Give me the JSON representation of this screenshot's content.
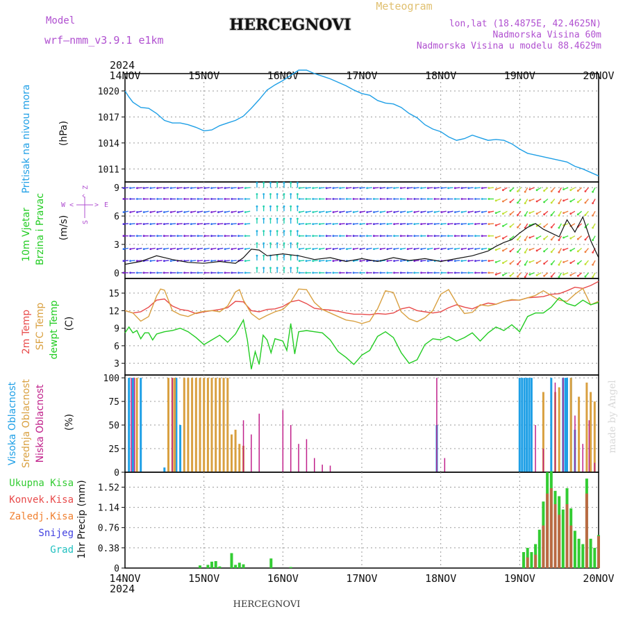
{
  "header": {
    "model_label": "Model",
    "model_name": "wrf—nmm_v3.9.1  e1km",
    "station": "HERCEGNOVI",
    "product": "Meteogram",
    "location": "lon,lat (18.4875E, 42.4625N)",
    "altitude": "Nadmorska Visina 60m",
    "model_altitude": "Nadmorska Visina u modelu 88.4629m",
    "bottom_station": "HERCEGNOVI",
    "credit": "made by Angel"
  },
  "time_axis": {
    "year": "2024",
    "labels": [
      "14NOV",
      "15NOV",
      "16NOV",
      "17NOV",
      "18NOV",
      "19NOV",
      "20NOV"
    ]
  },
  "colors": {
    "pressure": "#1e9fe6",
    "t2m": "#e84a4a",
    "sfc": "#d9a040",
    "dewpt": "#22cc22",
    "high_cloud": "#1e9fe6",
    "mid_cloud": "#d9a040",
    "low_cloud": "#c0208a",
    "total_precip": "#33cc33",
    "conv_precip": "#e84a4a",
    "frozen_precip": "#f08030",
    "snow": "#4040e0",
    "hail": "#20c0c0"
  },
  "chart_data": [
    {
      "type": "line",
      "panel": "pressure",
      "ylabel_parts": [
        "Pritisak na nivou mora",
        "(hPa)"
      ],
      "yticks": [
        "1011",
        "1014",
        "1017",
        "1020"
      ],
      "ylim": [
        1009.5,
        1022
      ],
      "xlim": [
        0,
        6
      ],
      "x": [
        0,
        0.05,
        0.1,
        0.2,
        0.3,
        0.4,
        0.5,
        0.6,
        0.7,
        0.8,
        0.9,
        1.0,
        1.1,
        1.2,
        1.3,
        1.4,
        1.5,
        1.6,
        1.7,
        1.8,
        1.9,
        2.0,
        2.1,
        2.2,
        2.3,
        2.4,
        2.5,
        2.6,
        2.7,
        2.8,
        2.9,
        3.0,
        3.1,
        3.2,
        3.3,
        3.4,
        3.5,
        3.6,
        3.7,
        3.8,
        3.9,
        4.0,
        4.1,
        4.2,
        4.3,
        4.4,
        4.5,
        4.6,
        4.7,
        4.8,
        4.9,
        5.0,
        5.1,
        5.2,
        5.3,
        5.4,
        5.5,
        5.6,
        5.7,
        5.8,
        5.9,
        6.0
      ],
      "values": [
        1020,
        1019.3,
        1018.7,
        1018.1,
        1018,
        1017.4,
        1016.6,
        1016.3,
        1016.3,
        1016.1,
        1015.8,
        1015.4,
        1015.5,
        1016,
        1016.3,
        1016.6,
        1017.1,
        1018,
        1019,
        1020.1,
        1020.7,
        1021.2,
        1021.8,
        1022.4,
        1022.4,
        1022,
        1021.7,
        1021.4,
        1021,
        1020.6,
        1020.1,
        1019.7,
        1019.5,
        1018.9,
        1018.6,
        1018.5,
        1018.1,
        1017.4,
        1016.9,
        1016.1,
        1015.6,
        1015.3,
        1014.7,
        1014.3,
        1014.5,
        1014.9,
        1014.6,
        1014.3,
        1014.4,
        1014.3,
        1013.9,
        1013.3,
        1012.8,
        1012.6,
        1012.4,
        1012.2,
        1012,
        1011.8,
        1011.3,
        1011,
        1010.6,
        1010.2
      ]
    },
    {
      "type": "line",
      "panel": "wind",
      "ylabel_parts": [
        "10m Vjetar",
        "Brzina i Pravac",
        "(m/s)"
      ],
      "compass": {
        "n": "Z",
        "w": "W",
        "e": "E",
        "s": "S",
        "arrow_up": "^",
        "arrow_left": "<",
        "arrow_right": ">"
      },
      "yticks": [
        "0",
        "3",
        "6",
        "9"
      ],
      "ylim": [
        -0.6,
        9.6
      ],
      "xlim": [
        0,
        6
      ],
      "x": [
        0,
        0.2,
        0.4,
        0.6,
        0.8,
        1.0,
        1.2,
        1.4,
        1.5,
        1.6,
        1.7,
        1.8,
        2.0,
        2.2,
        2.4,
        2.6,
        2.8,
        3.0,
        3.2,
        3.4,
        3.6,
        3.8,
        4.0,
        4.2,
        4.4,
        4.6,
        4.7,
        4.8,
        4.9,
        5.0,
        5.1,
        5.2,
        5.3,
        5.4,
        5.5,
        5.6,
        5.7,
        5.8,
        5.9,
        6.0
      ],
      "values": [
        0.9,
        1.2,
        1.8,
        1.4,
        1.1,
        1.0,
        1.2,
        1.0,
        1.6,
        2.5,
        2.4,
        1.8,
        2.0,
        1.8,
        1.4,
        1.6,
        1.2,
        1.5,
        1.2,
        1.6,
        1.3,
        1.5,
        1.2,
        1.5,
        1.8,
        2.3,
        2.8,
        3.2,
        3.5,
        4.2,
        4.8,
        5.2,
        4.6,
        4.2,
        3.8,
        5.6,
        4.3,
        5.9,
        3.4,
        1.6
      ]
    },
    {
      "type": "line",
      "panel": "temperature",
      "ylabel_parts": [
        "2m Temp",
        "SFC Temp",
        "dewpt Temp",
        "(C)"
      ],
      "yticks": [
        "3",
        "6",
        "9",
        "12",
        "15"
      ],
      "ylim": [
        1,
        17.5
      ],
      "xlim": [
        0,
        6
      ],
      "series": [
        {
          "name": "2m Temp",
          "x": [
            0,
            0.1,
            0.2,
            0.3,
            0.4,
            0.5,
            0.6,
            0.7,
            0.8,
            0.9,
            1.0,
            1.1,
            1.2,
            1.3,
            1.4,
            1.5,
            1.6,
            1.7,
            1.8,
            1.9,
            2.0,
            2.1,
            2.2,
            2.3,
            2.4,
            2.5,
            2.6,
            2.7,
            2.8,
            2.9,
            3.0,
            3.1,
            3.2,
            3.3,
            3.4,
            3.5,
            3.6,
            3.7,
            3.8,
            3.9,
            4.0,
            4.1,
            4.2,
            4.3,
            4.4,
            4.5,
            4.6,
            4.7,
            4.8,
            4.9,
            5.0,
            5.1,
            5.2,
            5.3,
            5.4,
            5.5,
            5.6,
            5.7,
            5.8,
            5.9,
            6.0
          ],
          "values": [
            12,
            11.6,
            11.8,
            12.6,
            13.8,
            14,
            12.8,
            12.2,
            12,
            11.5,
            11.8,
            12,
            12.2,
            12.5,
            13.6,
            13.5,
            12,
            11.8,
            12.2,
            12.3,
            12.7,
            13.5,
            13.8,
            13.2,
            12.4,
            12.2,
            12.1,
            11.9,
            11.6,
            11.4,
            11.4,
            11.3,
            11.5,
            11.4,
            11.6,
            12.3,
            12.6,
            12,
            11.8,
            11.6,
            11.8,
            12.5,
            13,
            12.6,
            12.3,
            12.9,
            13.3,
            13.1,
            13.6,
            13.8,
            13.8,
            14.2,
            14.3,
            14.4,
            14.8,
            14.9,
            15.4,
            16,
            15.8,
            16.3,
            17
          ]
        },
        {
          "name": "SFC Temp",
          "x": [
            0,
            0.1,
            0.2,
            0.3,
            0.4,
            0.45,
            0.5,
            0.55,
            0.6,
            0.7,
            0.8,
            0.9,
            1.0,
            1.1,
            1.2,
            1.3,
            1.4,
            1.45,
            1.5,
            1.6,
            1.7,
            1.8,
            1.9,
            2.0,
            2.1,
            2.2,
            2.3,
            2.4,
            2.5,
            2.6,
            2.7,
            2.8,
            2.9,
            3.0,
            3.1,
            3.2,
            3.3,
            3.4,
            3.5,
            3.6,
            3.7,
            3.8,
            3.9,
            4.0,
            4.1,
            4.2,
            4.3,
            4.4,
            4.5,
            4.6,
            4.7,
            4.8,
            4.9,
            5.0,
            5.1,
            5.2,
            5.3,
            5.4,
            5.5,
            5.6,
            5.7,
            5.8,
            5.9,
            6.0
          ],
          "values": [
            12,
            11.6,
            10.2,
            11,
            14.5,
            15.7,
            15.5,
            13.8,
            12,
            11.3,
            11,
            11.6,
            11.9,
            12,
            11.8,
            12.8,
            15.2,
            15.6,
            13.8,
            11.5,
            10.5,
            11.2,
            11.8,
            12.2,
            13.5,
            15.7,
            15.6,
            13.4,
            12.2,
            11.6,
            11,
            10.4,
            10.2,
            9.8,
            10.2,
            12.3,
            15.4,
            15.1,
            11.8,
            10.6,
            10.1,
            10.8,
            12,
            14.8,
            15.6,
            13.3,
            11.5,
            11.7,
            13,
            12.8,
            13.1,
            13.6,
            13.9,
            13.8,
            14.2,
            14.6,
            15.4,
            14.6,
            13.8,
            13.6,
            14.8,
            15.8,
            13,
            13.6
          ]
        },
        {
          "name": "dewpt Temp",
          "x": [
            0,
            0.05,
            0.1,
            0.15,
            0.2,
            0.25,
            0.3,
            0.35,
            0.4,
            0.5,
            0.6,
            0.7,
            0.8,
            0.9,
            1.0,
            1.1,
            1.2,
            1.3,
            1.4,
            1.5,
            1.55,
            1.6,
            1.65,
            1.7,
            1.75,
            1.8,
            1.85,
            1.9,
            2.0,
            2.05,
            2.1,
            2.15,
            2.2,
            2.3,
            2.4,
            2.5,
            2.6,
            2.7,
            2.8,
            2.9,
            3.0,
            3.1,
            3.2,
            3.3,
            3.4,
            3.5,
            3.6,
            3.7,
            3.8,
            3.9,
            4.0,
            4.1,
            4.2,
            4.3,
            4.4,
            4.5,
            4.6,
            4.7,
            4.8,
            4.9,
            5.0,
            5.1,
            5.2,
            5.3,
            5.4,
            5.5,
            5.6,
            5.7,
            5.8,
            5.9,
            6.0
          ],
          "values": [
            8.2,
            9.2,
            8.2,
            8.6,
            7.2,
            8.2,
            8.2,
            7,
            8,
            8.4,
            8.6,
            9,
            8.4,
            7.4,
            6.2,
            7,
            7.8,
            6.6,
            8,
            10.4,
            7,
            2,
            5,
            2.8,
            7.8,
            7,
            4.8,
            7.2,
            6.8,
            5.2,
            9.8,
            4.6,
            8.4,
            8.6,
            8.4,
            8.2,
            7,
            5,
            4,
            2.8,
            4.4,
            5.2,
            7.6,
            8.4,
            7.4,
            4.8,
            3,
            3.6,
            6.2,
            7.2,
            7,
            7.6,
            6.8,
            7.4,
            8.2,
            6.8,
            8.2,
            9.2,
            8.6,
            9.6,
            8.4,
            11,
            11.6,
            11.6,
            12.6,
            14.2,
            13.2,
            12.8,
            13.8,
            13,
            13.4
          ]
        }
      ]
    },
    {
      "type": "bar",
      "panel": "cloud",
      "ylabel_parts": [
        "Visoka Oblacnost",
        "Srednja Oblacnost",
        "Niska Oblacnost",
        "(%)"
      ],
      "yticks": [
        "0",
        "25",
        "50",
        "75",
        "100"
      ],
      "ylim": [
        0,
        103
      ],
      "xlim": [
        0,
        6
      ],
      "series": [
        {
          "name": "Visoka Oblacnost",
          "x": [
            0.05,
            0.1,
            0.2,
            0.5,
            0.55,
            0.65,
            0.7,
            3.95,
            5.0,
            5.03,
            5.06,
            5.09,
            5.12,
            5.15,
            5.4,
            5.55,
            5.58,
            5.6,
            5.65,
            5.7
          ],
          "values": [
            100,
            100,
            100,
            5,
            40,
            100,
            50,
            50,
            100,
            100,
            100,
            100,
            100,
            100,
            100,
            100,
            100,
            100,
            100,
            45
          ]
        },
        {
          "name": "Srednja Oblacnost",
          "x": [
            0.15,
            0.55,
            0.6,
            0.63,
            0.75,
            0.8,
            0.85,
            0.9,
            0.95,
            1.0,
            1.05,
            1.1,
            1.15,
            1.2,
            1.25,
            1.3,
            1.35,
            1.4,
            1.45,
            1.5,
            5.3,
            5.45,
            5.5,
            5.65,
            5.75,
            5.85,
            5.9,
            5.95
          ],
          "values": [
            100,
            100,
            100,
            100,
            100,
            100,
            100,
            100,
            100,
            100,
            100,
            100,
            100,
            100,
            100,
            100,
            40,
            45,
            30,
            28,
            85,
            85,
            90,
            100,
            80,
            95,
            85,
            75
          ]
        },
        {
          "name": "Niska Oblacnost",
          "x": [
            0.08,
            0.12,
            0.6,
            1.5,
            1.6,
            1.7,
            2.0,
            2.1,
            2.2,
            2.3,
            2.4,
            2.5,
            2.6,
            3.95,
            4.05,
            5.2,
            5.3,
            5.45,
            5.55,
            5.7,
            5.8,
            5.88,
            5.95
          ],
          "values": [
            100,
            100,
            100,
            55,
            40,
            62,
            66,
            50,
            30,
            35,
            15,
            8,
            7,
            100,
            15,
            50,
            25,
            95,
            100,
            60,
            30,
            55,
            10
          ]
        }
      ]
    },
    {
      "type": "bar",
      "panel": "precipitation",
      "ylabel": "1hr Precip (mm)",
      "yticks": [
        "0",
        "0.38",
        "0.76",
        "1.14",
        "1.52"
      ],
      "ylim": [
        0,
        1.8
      ],
      "xlim": [
        0,
        6
      ],
      "legend": [
        "Ukupna Kisa",
        "Konvek.Kisa",
        "Zaledj.Kisa",
        "Snijeg",
        "Grad"
      ],
      "series": [
        {
          "name": "Ukupna Kisa",
          "x": [
            0.95,
            1.05,
            1.1,
            1.15,
            1.2,
            1.35,
            1.4,
            1.45,
            1.5,
            1.85,
            2.1,
            5.05,
            5.1,
            5.15,
            5.2,
            5.25,
            5.3,
            5.35,
            5.4,
            5.45,
            5.5,
            5.55,
            5.6,
            5.65,
            5.7,
            5.75,
            5.8,
            5.85,
            5.9,
            5.95,
            6.0
          ],
          "values": [
            0.05,
            0.06,
            0.12,
            0.13,
            0.03,
            0.28,
            0.06,
            0.1,
            0.07,
            0.18,
            0.02,
            0.3,
            0.38,
            0.3,
            0.45,
            0.72,
            1.25,
            1.8,
            1.82,
            1.45,
            1.35,
            1.1,
            1.5,
            1.12,
            0.7,
            0.55,
            0.45,
            1.68,
            0.55,
            0.38,
            0.62
          ]
        },
        {
          "name": "Konvek.Kisa",
          "x": [
            5.1,
            5.2,
            5.3,
            5.35,
            5.4,
            5.45,
            5.5,
            5.6,
            5.65,
            5.85,
            6.0
          ],
          "values": [
            0.2,
            0.25,
            0.8,
            1.4,
            1.5,
            1.2,
            1.0,
            1.2,
            0.8,
            1.4,
            0.6
          ]
        }
      ]
    }
  ]
}
